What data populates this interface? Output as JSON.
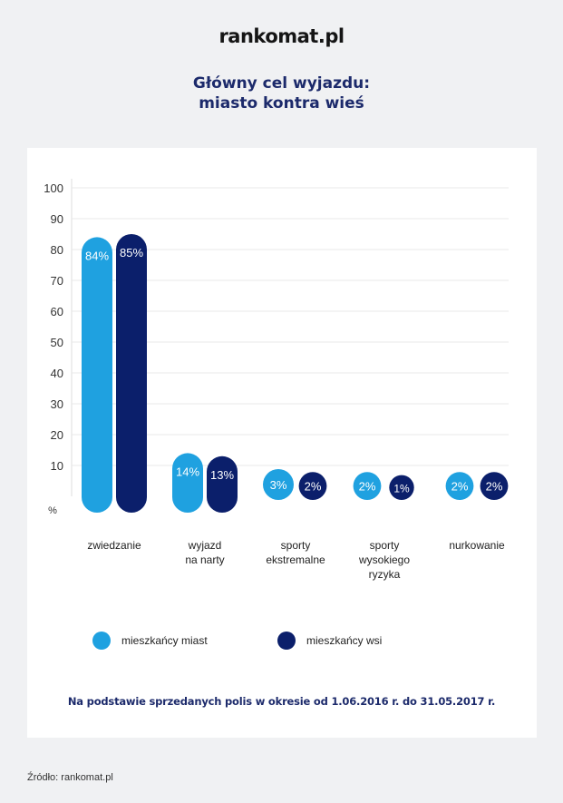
{
  "header": {
    "logo": "rankomat.pl"
  },
  "title_line1": "Główny cel wyjazdu:",
  "title_line2": "miasto kontra wieś",
  "chart_data": {
    "type": "bar",
    "categories": [
      [
        "zwiedzanie"
      ],
      [
        "wyjazd",
        "na narty"
      ],
      [
        "sporty",
        "ekstremalne"
      ],
      [
        "sporty",
        "wysokiego",
        "ryzyka"
      ],
      [
        "nurkowanie"
      ]
    ],
    "series": [
      {
        "name": "mieszkańcy miast",
        "values": [
          84,
          14,
          3,
          2,
          2
        ],
        "labels": [
          "84%",
          "14%",
          "3%",
          "2%",
          "2%"
        ],
        "color": "#1fa1e0"
      },
      {
        "name": "mieszkańcy wsi",
        "values": [
          85,
          13,
          2,
          1,
          2
        ],
        "labels": [
          "85%",
          "13%",
          "2%",
          "1%",
          "2%"
        ],
        "color": "#0b1f6b"
      }
    ],
    "yticks": [
      10,
      20,
      30,
      40,
      50,
      60,
      70,
      80,
      90,
      100
    ],
    "ylabel": "%",
    "ylim": [
      0,
      100
    ],
    "grid": true,
    "legend": "bottom"
  },
  "legend": [
    {
      "label": "mieszkańcy miast",
      "color": "#1fa1e0"
    },
    {
      "label": "mieszkańcy wsi",
      "color": "#0b1f6b"
    }
  ],
  "note": "Na podstawie sprzedanych polis w okresie od 1.06.2016 r. do 31.05.2017 r.",
  "source": "Źródło: rankomat.pl"
}
